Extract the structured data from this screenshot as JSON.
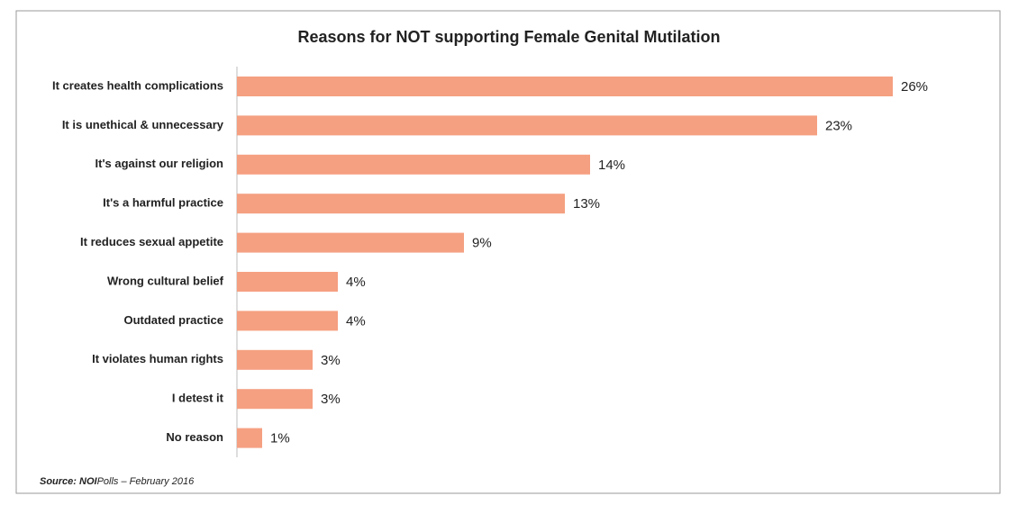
{
  "chart_data": {
    "type": "bar",
    "orientation": "horizontal",
    "title": "Reasons for NOT supporting  Female Genital Mutilation",
    "categories": [
      "It creates health complications",
      "It is unethical & unnecessary",
      "It's against our religion",
      "It's a harmful practice",
      "It reduces sexual appetite",
      "Wrong cultural belief",
      "Outdated practice",
      "It violates human rights",
      "I detest it",
      "No reason"
    ],
    "values": [
      26,
      23,
      14,
      13,
      9,
      4,
      4,
      3,
      3,
      1
    ],
    "value_labels": [
      "26%",
      "23%",
      "14%",
      "13%",
      "9%",
      "4%",
      "4%",
      "3%",
      "3%",
      "1%"
    ],
    "color": "#f5a081",
    "source": [
      "Source: NOI",
      "Polls – February 2016"
    ]
  }
}
